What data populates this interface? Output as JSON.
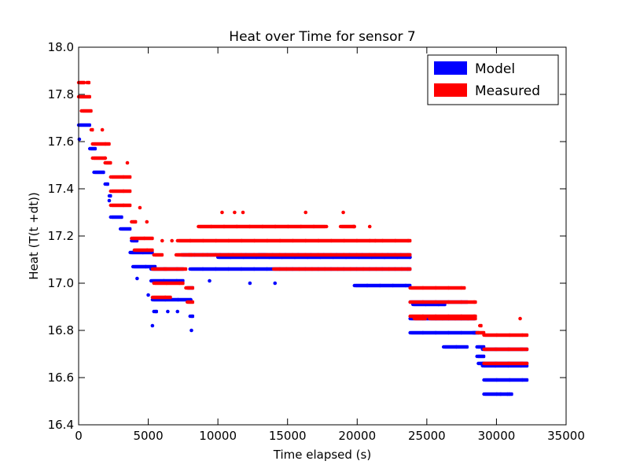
{
  "chart_data": {
    "type": "scatter",
    "title": "Heat over Time for sensor 7",
    "xlabel": "Time elapsed (s)",
    "ylabel": "Heat (T(t +dt))",
    "xlim": [
      0,
      35000
    ],
    "ylim": [
      16.4,
      18.0
    ],
    "xticks": [
      0,
      5000,
      10000,
      15000,
      20000,
      25000,
      30000,
      35000
    ],
    "yticks": [
      16.4,
      16.6,
      16.8,
      17.0,
      17.2,
      17.4,
      17.6,
      17.8,
      18.0
    ],
    "xtick_labels": [
      "0",
      "5000",
      "10000",
      "15000",
      "20000",
      "25000",
      "30000",
      "35000"
    ],
    "ytick_labels": [
      "16.4",
      "16.6",
      "16.8",
      "17.0",
      "17.2",
      "17.4",
      "17.6",
      "17.8",
      "18.0"
    ],
    "grid": false,
    "legend_position": "top-right",
    "series": [
      {
        "name": "Model",
        "color": "#0000ff",
        "bands": [
          {
            "x0": 0,
            "x1": 900,
            "y": 17.67
          },
          {
            "x0": 800,
            "x1": 1300,
            "y": 17.57
          },
          {
            "x0": 1100,
            "x1": 1900,
            "y": 17.47
          },
          {
            "x0": 1900,
            "x1": 2200,
            "y": 17.42
          },
          {
            "x0": 2200,
            "x1": 2400,
            "y": 17.37
          },
          {
            "x0": 2300,
            "x1": 3200,
            "y": 17.28
          },
          {
            "x0": 3000,
            "x1": 3800,
            "y": 17.23
          },
          {
            "x0": 3800,
            "x1": 4300,
            "y": 17.18
          },
          {
            "x0": 3700,
            "x1": 5400,
            "y": 17.13
          },
          {
            "x0": 3900,
            "x1": 5600,
            "y": 17.07
          },
          {
            "x0": 5200,
            "x1": 7600,
            "y": 17.06
          },
          {
            "x0": 5200,
            "x1": 7600,
            "y": 17.01
          },
          {
            "x0": 5300,
            "x1": 8100,
            "y": 16.93
          },
          {
            "x0": 5400,
            "x1": 5700,
            "y": 16.88
          },
          {
            "x0": 7800,
            "x1": 8300,
            "y": 16.98
          },
          {
            "x0": 8000,
            "x1": 8300,
            "y": 16.86
          },
          {
            "x0": 7400,
            "x1": 13500,
            "y": 17.12
          },
          {
            "x0": 8000,
            "x1": 23900,
            "y": 17.06
          },
          {
            "x0": 10000,
            "x1": 23900,
            "y": 17.11
          },
          {
            "x0": 13000,
            "x1": 23900,
            "y": 17.12
          },
          {
            "x0": 19800,
            "x1": 23900,
            "y": 16.99
          },
          {
            "x0": 23800,
            "x1": 28000,
            "y": 16.92
          },
          {
            "x0": 23800,
            "x1": 28500,
            "y": 16.85
          },
          {
            "x0": 23800,
            "x1": 28600,
            "y": 16.79
          },
          {
            "x0": 24000,
            "x1": 26400,
            "y": 16.91
          },
          {
            "x0": 26200,
            "x1": 28000,
            "y": 16.73
          },
          {
            "x0": 28300,
            "x1": 28800,
            "y": 16.79
          },
          {
            "x0": 28600,
            "x1": 29200,
            "y": 16.73
          },
          {
            "x0": 28600,
            "x1": 29200,
            "y": 16.69
          },
          {
            "x0": 28700,
            "x1": 29200,
            "y": 16.66
          },
          {
            "x0": 29000,
            "x1": 32300,
            "y": 16.72
          },
          {
            "x0": 29000,
            "x1": 32300,
            "y": 16.66
          },
          {
            "x0": 29000,
            "x1": 32300,
            "y": 16.65
          },
          {
            "x0": 29100,
            "x1": 32300,
            "y": 16.59
          },
          {
            "x0": 29100,
            "x1": 31200,
            "y": 16.53
          }
        ],
        "points": [
          {
            "x": 50,
            "y": 17.61
          },
          {
            "x": 2200,
            "y": 17.35
          },
          {
            "x": 4200,
            "y": 17.02
          },
          {
            "x": 5000,
            "y": 16.95
          },
          {
            "x": 5300,
            "y": 16.82
          },
          {
            "x": 6400,
            "y": 16.88
          },
          {
            "x": 7100,
            "y": 16.88
          },
          {
            "x": 8100,
            "y": 16.8
          },
          {
            "x": 9400,
            "y": 17.01
          },
          {
            "x": 12300,
            "y": 17.0
          },
          {
            "x": 14100,
            "y": 17.0
          },
          {
            "x": 30300,
            "y": 16.53
          },
          {
            "x": 30800,
            "y": 16.53
          }
        ]
      },
      {
        "name": "Measured",
        "color": "#ff0000",
        "bands": [
          {
            "x0": 0,
            "x1": 500,
            "y": 17.85
          },
          {
            "x0": 600,
            "x1": 850,
            "y": 17.85
          },
          {
            "x0": 0,
            "x1": 900,
            "y": 17.79
          },
          {
            "x0": 200,
            "x1": 1000,
            "y": 17.73
          },
          {
            "x0": 900,
            "x1": 1100,
            "y": 17.65
          },
          {
            "x0": 1000,
            "x1": 2300,
            "y": 17.59
          },
          {
            "x0": 1000,
            "x1": 2000,
            "y": 17.53
          },
          {
            "x0": 1900,
            "x1": 2400,
            "y": 17.51
          },
          {
            "x0": 2300,
            "x1": 3800,
            "y": 17.45
          },
          {
            "x0": 2300,
            "x1": 3800,
            "y": 17.39
          },
          {
            "x0": 2300,
            "x1": 3800,
            "y": 17.33
          },
          {
            "x0": 3800,
            "x1": 4200,
            "y": 17.26
          },
          {
            "x0": 3800,
            "x1": 5400,
            "y": 17.19
          },
          {
            "x0": 4000,
            "x1": 5400,
            "y": 17.14
          },
          {
            "x0": 5400,
            "x1": 6100,
            "y": 17.12
          },
          {
            "x0": 5300,
            "x1": 6400,
            "y": 17.06
          },
          {
            "x0": 5400,
            "x1": 7600,
            "y": 17.0
          },
          {
            "x0": 5300,
            "x1": 6700,
            "y": 16.94
          },
          {
            "x0": 6200,
            "x1": 7800,
            "y": 17.06
          },
          {
            "x0": 7000,
            "x1": 8200,
            "y": 17.12
          },
          {
            "x0": 7700,
            "x1": 8300,
            "y": 16.98
          },
          {
            "x0": 7800,
            "x1": 8300,
            "y": 16.92
          },
          {
            "x0": 7100,
            "x1": 23900,
            "y": 17.18
          },
          {
            "x0": 8000,
            "x1": 23900,
            "y": 17.12
          },
          {
            "x0": 8600,
            "x1": 17800,
            "y": 17.24
          },
          {
            "x0": 18800,
            "x1": 19900,
            "y": 17.24
          },
          {
            "x0": 14000,
            "x1": 23900,
            "y": 17.06
          },
          {
            "x0": 23800,
            "x1": 27800,
            "y": 16.98
          },
          {
            "x0": 23800,
            "x1": 28600,
            "y": 16.92
          },
          {
            "x0": 23800,
            "x1": 28600,
            "y": 16.86
          },
          {
            "x0": 24100,
            "x1": 25000,
            "y": 16.85
          },
          {
            "x0": 25200,
            "x1": 28600,
            "y": 16.85
          },
          {
            "x0": 28600,
            "x1": 29200,
            "y": 16.79
          },
          {
            "x0": 29100,
            "x1": 32300,
            "y": 16.72
          },
          {
            "x0": 29100,
            "x1": 32300,
            "y": 16.78
          },
          {
            "x0": 28800,
            "x1": 29000,
            "y": 16.82
          },
          {
            "x0": 29100,
            "x1": 32300,
            "y": 16.66
          }
        ],
        "points": [
          {
            "x": 1700,
            "y": 17.65
          },
          {
            "x": 3500,
            "y": 17.51
          },
          {
            "x": 4400,
            "y": 17.32
          },
          {
            "x": 4900,
            "y": 17.26
          },
          {
            "x": 6000,
            "y": 17.18
          },
          {
            "x": 6700,
            "y": 17.18
          },
          {
            "x": 10300,
            "y": 17.3
          },
          {
            "x": 11200,
            "y": 17.3
          },
          {
            "x": 11800,
            "y": 17.3
          },
          {
            "x": 16300,
            "y": 17.3
          },
          {
            "x": 19000,
            "y": 17.3
          },
          {
            "x": 19800,
            "y": 17.24
          },
          {
            "x": 20900,
            "y": 17.24
          },
          {
            "x": 21300,
            "y": 17.18
          },
          {
            "x": 31700,
            "y": 16.85
          }
        ]
      }
    ]
  }
}
